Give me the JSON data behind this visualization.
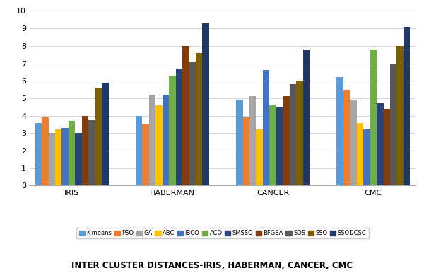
{
  "datasets": [
    "IRIS",
    "HABERMAN",
    "CANCER",
    "CMC"
  ],
  "algorithms": [
    "K-means",
    "PSO",
    "GA",
    "ABC",
    "IBCO",
    "ACO",
    "SMSSO",
    "BFGSA",
    "SOS",
    "SSO",
    "SSODCSC"
  ],
  "values": {
    "IRIS": [
      3.6,
      3.9,
      3.0,
      3.2,
      3.3,
      3.7,
      3.0,
      4.0,
      3.8,
      5.6,
      5.9
    ],
    "HABERMAN": [
      4.0,
      3.5,
      5.2,
      4.6,
      5.2,
      6.3,
      6.7,
      8.0,
      7.1,
      7.6,
      9.3
    ],
    "CANCER": [
      4.9,
      3.9,
      5.1,
      3.2,
      6.6,
      4.6,
      4.5,
      5.1,
      5.8,
      6.0,
      7.8
    ],
    "CMC": [
      6.2,
      5.5,
      4.9,
      3.6,
      3.2,
      7.8,
      4.7,
      4.4,
      7.0,
      8.0,
      9.1
    ]
  },
  "colors": [
    "#5B9BD5",
    "#ED7D31",
    "#A5A5A5",
    "#FFC000",
    "#4472C4",
    "#70AD47",
    "#264478",
    "#843C0C",
    "#595959",
    "#7F6000",
    "#1F3864"
  ],
  "title": "INTER CLUSTER DISTANCES-IRIS, HABERMAN, CANCER, CMC",
  "ylim": [
    0,
    10
  ],
  "yticks": [
    0,
    1,
    2,
    3,
    4,
    5,
    6,
    7,
    8,
    9,
    10
  ],
  "background_color": "#FFFFFF"
}
